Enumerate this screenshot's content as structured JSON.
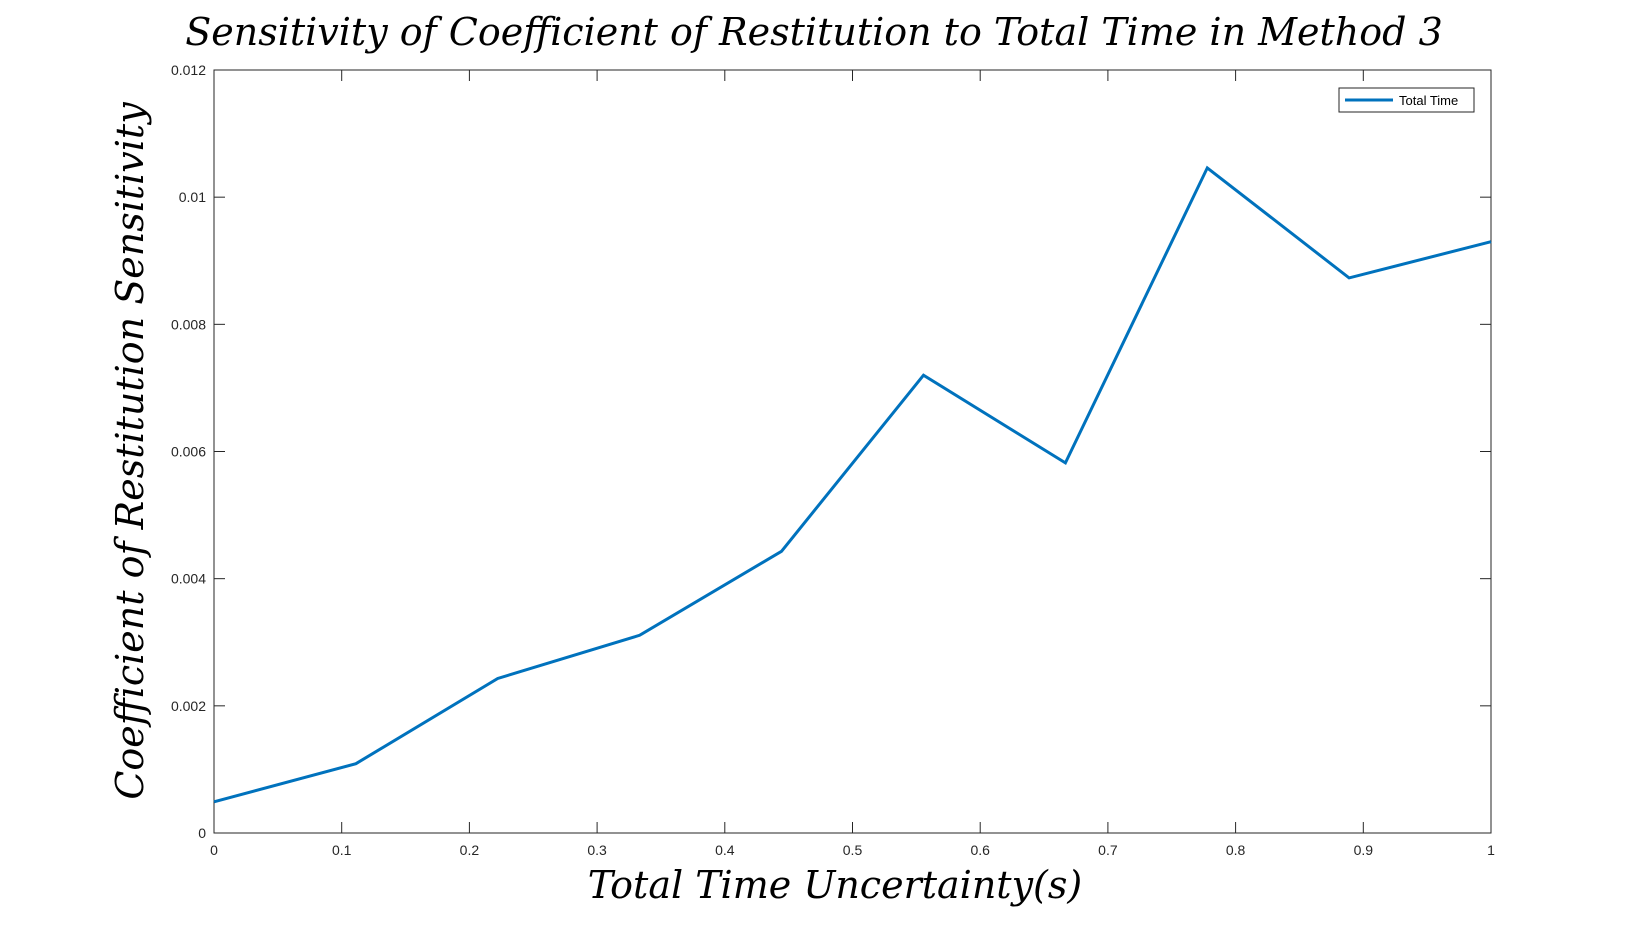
{
  "chart_data": {
    "type": "line",
    "title": "Sensitivity of Coefficient of Restitution to Total Time in Method 3",
    "xlabel": "Total Time Uncertainty(s)",
    "ylabel": "Coefficient of Restitution Sensitivity",
    "xlim": [
      0,
      1
    ],
    "ylim": [
      0,
      0.012
    ],
    "xticks": [
      "0",
      "0.1",
      "0.2",
      "0.3",
      "0.4",
      "0.5",
      "0.6",
      "0.7",
      "0.8",
      "0.9",
      "1"
    ],
    "yticks": [
      "0",
      "0.002",
      "0.004",
      "0.006",
      "0.008",
      "0.01",
      "0.012"
    ],
    "grid": false,
    "legend_position": "top-right",
    "series": [
      {
        "name": "Total Time",
        "color": "#0072bd",
        "x": [
          0,
          0.1111,
          0.2222,
          0.3333,
          0.4444,
          0.5556,
          0.6667,
          0.7778,
          0.8889,
          1.0
        ],
        "y": [
          0.00049,
          0.00109,
          0.00243,
          0.00311,
          0.00443,
          0.0072,
          0.00582,
          0.01046,
          0.00873,
          0.0093
        ]
      }
    ]
  }
}
